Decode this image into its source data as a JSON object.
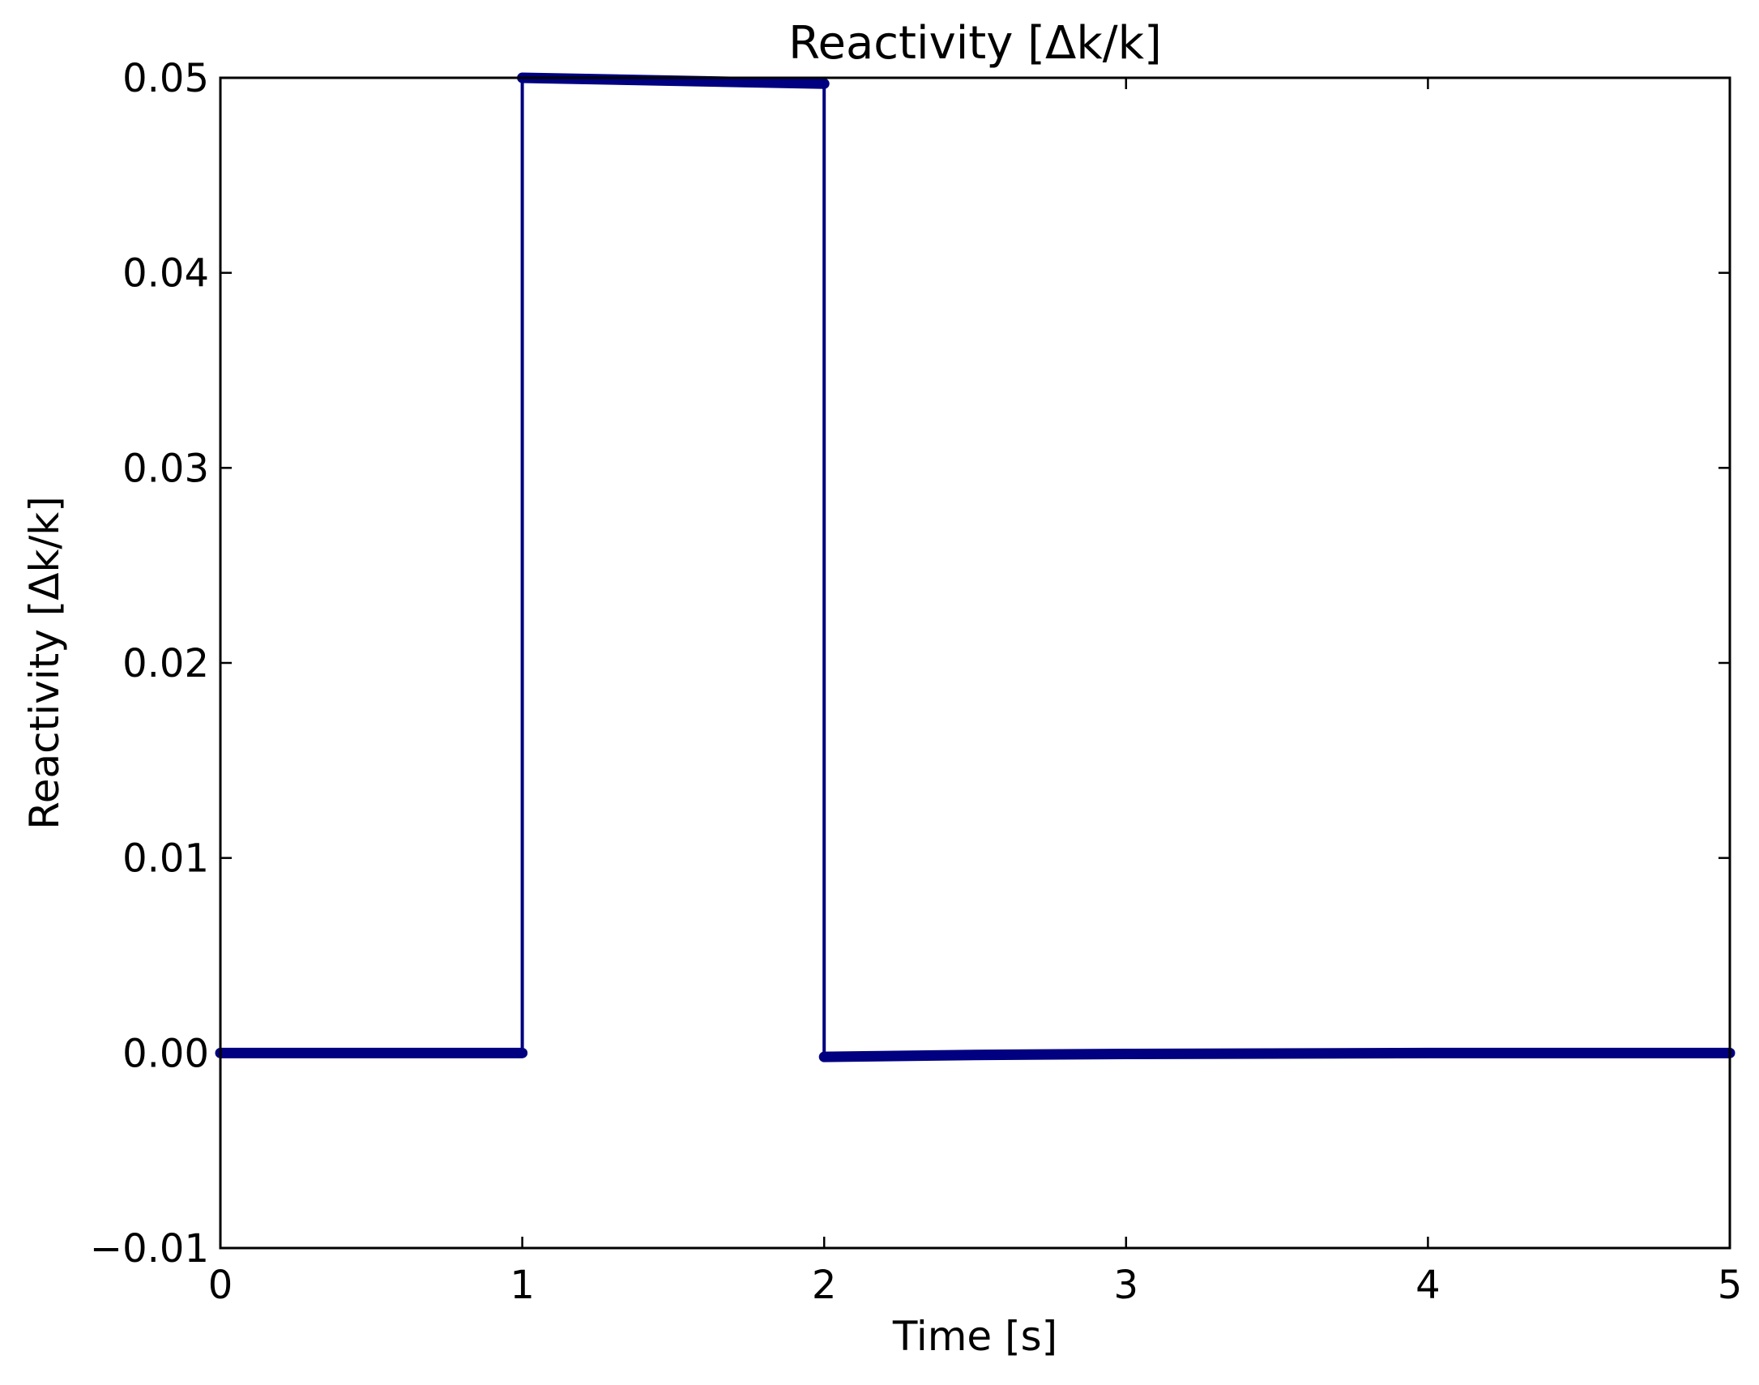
{
  "chart_data": {
    "type": "line",
    "title": "Reactivity [Δk/k]",
    "xlabel": "Time [s]",
    "ylabel": "Reactivity [Δk/k]",
    "xlim": [
      0,
      5
    ],
    "ylim": [
      -0.01,
      0.05
    ],
    "x_ticks": [
      "0",
      "1",
      "2",
      "3",
      "4",
      "5"
    ],
    "y_ticks": [
      "−0.01",
      "0.00",
      "0.01",
      "0.02",
      "0.03",
      "0.04",
      "0.05"
    ],
    "grid": false,
    "legend": "none",
    "line_color": "#000080",
    "series": [
      {
        "x": [
          0.0,
          1.0,
          1.0,
          2.0,
          2.0,
          2.5,
          3.0,
          4.0,
          5.0
        ],
        "y": [
          0.0,
          0.0,
          0.05,
          0.0497,
          -0.0002,
          -0.0001,
          -5e-05,
          0.0,
          0.0
        ]
      }
    ],
    "segments": [
      {
        "x": [
          0.0,
          1.0
        ],
        "y": [
          0.0,
          0.0
        ]
      },
      {
        "x": [
          1.0,
          2.0
        ],
        "y": [
          0.05,
          0.0497
        ]
      },
      {
        "x": [
          2.0,
          2.5,
          3.0,
          4.0,
          5.0
        ],
        "y": [
          -0.0002,
          -0.0001,
          -5e-05,
          0.0,
          0.0
        ]
      }
    ]
  }
}
